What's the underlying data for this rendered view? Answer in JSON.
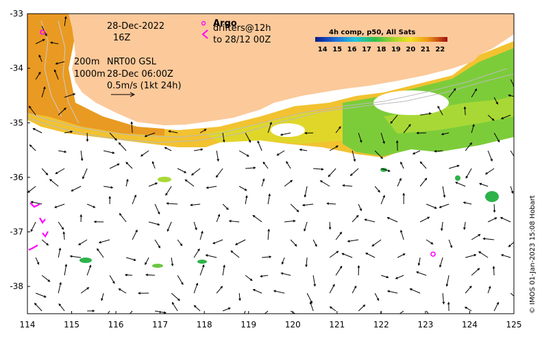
{
  "map": {
    "x_ticks": [
      "114",
      "115",
      "116",
      "117",
      "118",
      "119",
      "120",
      "121",
      "122",
      "123",
      "124",
      "125"
    ],
    "y_ticks": [
      "-33",
      "-34",
      "-35",
      "-36",
      "-37",
      "-38"
    ],
    "x_range": [
      114,
      125
    ],
    "y_range": [
      -38.5,
      -33.0
    ],
    "land_color": "#fcc99a",
    "arrow_color": "#000000",
    "float_color": "#ff00ff"
  },
  "annotations": {
    "date": "28-Dec-2022",
    "time": "16Z",
    "argo": "Argo",
    "drifters": "drifters@12h",
    "drifters_to": "to 28/12 00Z",
    "isobaths": "200m",
    "isobaths_2": "1000m",
    "product": "NRT00 GSL",
    "product_time": "28-Dec 06:00Z",
    "velocity_scale": "0.5m/s (1kt 24h)"
  },
  "colorbar": {
    "title": "4h comp, p50, All Sats",
    "labels": [
      "14",
      "15",
      "16",
      "17",
      "18",
      "19",
      "20",
      "21",
      "22"
    ],
    "range": [
      13.5,
      22.5
    ]
  },
  "credit": "© IMOS 01-Jan-2023 15:08 Hobart"
}
